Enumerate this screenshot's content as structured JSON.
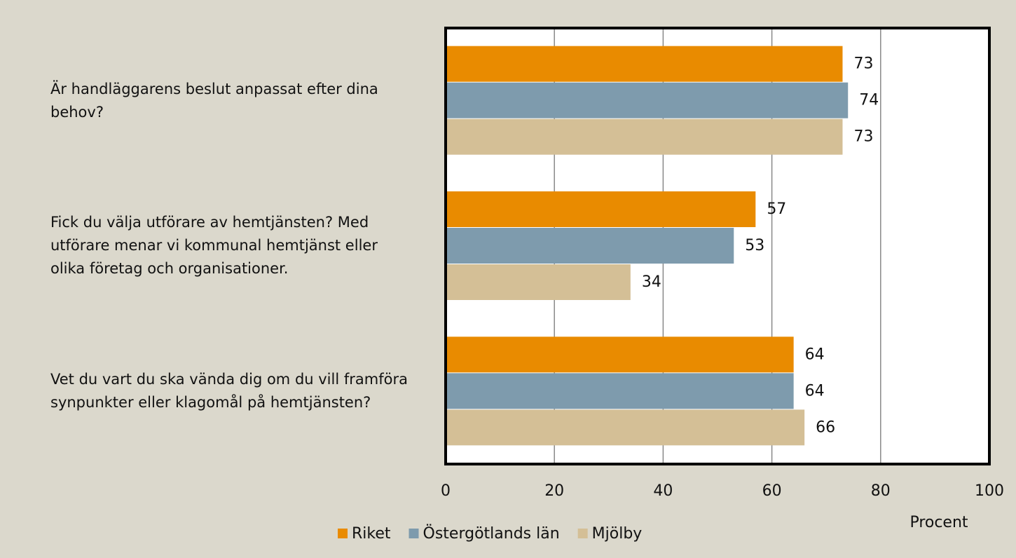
{
  "chart_data": {
    "type": "bar",
    "orientation": "horizontal",
    "categories": [
      "Är handläggarens beslut anpassat efter dina behov?",
      "Fick du välja utförare av hemtjänsten? Med utförare menar vi kommunal hemtjänst eller olika företag och organisationer.",
      "Vet du vart du ska vända dig om du vill framföra synpunkter eller klagomål på hemtjänsten?"
    ],
    "series": [
      {
        "name": "Riket",
        "color": "#e98b00",
        "values": [
          73,
          57,
          64
        ]
      },
      {
        "name": "Östergötlands län",
        "color": "#7e9bad",
        "values": [
          74,
          53,
          64
        ]
      },
      {
        "name": "Mjölby",
        "color": "#d4bf96",
        "values": [
          73,
          34,
          66
        ]
      }
    ],
    "xlabel": "Procent",
    "xlim": [
      0,
      100
    ],
    "xticks": [
      0,
      20,
      40,
      60,
      80,
      100
    ],
    "grid": true,
    "legend": "bottom"
  }
}
